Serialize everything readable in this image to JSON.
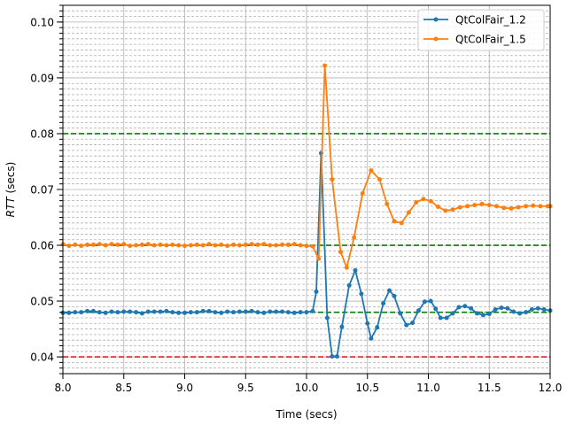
{
  "chart_data": {
    "type": "line",
    "title": "",
    "xlabel": "Time (secs)",
    "ylabel_italic": "RTT",
    "ylabel_rest": " (secs)",
    "xlim": [
      8.0,
      12.0
    ],
    "ylim": [
      0.037,
      0.103
    ],
    "x_ticks": [
      8.0,
      8.5,
      9.0,
      9.5,
      10.0,
      10.5,
      11.0,
      11.5,
      12.0
    ],
    "x_tick_labels": [
      "8.0",
      "8.5",
      "9.0",
      "9.5",
      "10.0",
      "10.5",
      "11.0",
      "11.5",
      "12.0"
    ],
    "y_ticks": [
      0.04,
      0.05,
      0.06,
      0.07,
      0.08,
      0.09,
      0.1
    ],
    "y_tick_labels": [
      "0.04",
      "0.05",
      "0.06",
      "0.07",
      "0.08",
      "0.09",
      "0.10"
    ],
    "grid": true,
    "legend_position": "top-right",
    "reference_lines": [
      {
        "y": 0.08,
        "color": "#008000"
      },
      {
        "y": 0.06,
        "color": "#008000"
      },
      {
        "y": 0.048,
        "color": "#008000"
      },
      {
        "y": 0.04,
        "color": "#d62728"
      }
    ],
    "series": [
      {
        "name": "QtColFair_1.2",
        "color": "#1f77b4",
        "points": [
          [
            8.0,
            0.0479
          ],
          [
            8.05,
            0.0479
          ],
          [
            8.1,
            0.048
          ],
          [
            8.15,
            0.048
          ],
          [
            8.2,
            0.0482
          ],
          [
            8.25,
            0.0482
          ],
          [
            8.3,
            0.048
          ],
          [
            8.35,
            0.0479
          ],
          [
            8.4,
            0.0481
          ],
          [
            8.45,
            0.048
          ],
          [
            8.5,
            0.0481
          ],
          [
            8.55,
            0.0481
          ],
          [
            8.6,
            0.048
          ],
          [
            8.65,
            0.0478
          ],
          [
            8.7,
            0.0481
          ],
          [
            8.75,
            0.0481
          ],
          [
            8.8,
            0.0481
          ],
          [
            8.85,
            0.0482
          ],
          [
            8.9,
            0.048
          ],
          [
            8.95,
            0.0479
          ],
          [
            9.0,
            0.0479
          ],
          [
            9.05,
            0.048
          ],
          [
            9.1,
            0.048
          ],
          [
            9.15,
            0.0482
          ],
          [
            9.2,
            0.0482
          ],
          [
            9.25,
            0.048
          ],
          [
            9.3,
            0.0479
          ],
          [
            9.35,
            0.0481
          ],
          [
            9.4,
            0.048
          ],
          [
            9.45,
            0.0481
          ],
          [
            9.5,
            0.0481
          ],
          [
            9.55,
            0.0482
          ],
          [
            9.6,
            0.048
          ],
          [
            9.65,
            0.0479
          ],
          [
            9.7,
            0.0481
          ],
          [
            9.75,
            0.0481
          ],
          [
            9.8,
            0.0481
          ],
          [
            9.85,
            0.048
          ],
          [
            9.9,
            0.0479
          ],
          [
            9.95,
            0.048
          ],
          [
            10.0,
            0.048
          ],
          [
            10.05,
            0.0482
          ],
          [
            10.08,
            0.0517
          ],
          [
            10.12,
            0.0765
          ],
          [
            10.17,
            0.047
          ],
          [
            10.21,
            0.0401
          ],
          [
            10.25,
            0.0401
          ],
          [
            10.29,
            0.0454
          ],
          [
            10.35,
            0.0528
          ],
          [
            10.4,
            0.0555
          ],
          [
            10.45,
            0.0513
          ],
          [
            10.5,
            0.046
          ],
          [
            10.53,
            0.0433
          ],
          [
            10.58,
            0.0453
          ],
          [
            10.63,
            0.0496
          ],
          [
            10.68,
            0.0519
          ],
          [
            10.72,
            0.0509
          ],
          [
            10.77,
            0.0478
          ],
          [
            10.82,
            0.0457
          ],
          [
            10.87,
            0.0461
          ],
          [
            10.92,
            0.0483
          ],
          [
            10.97,
            0.0499
          ],
          [
            11.02,
            0.05
          ],
          [
            11.06,
            0.0486
          ],
          [
            11.1,
            0.047
          ],
          [
            11.15,
            0.047
          ],
          [
            11.2,
            0.0478
          ],
          [
            11.25,
            0.0489
          ],
          [
            11.3,
            0.0491
          ],
          [
            11.35,
            0.0487
          ],
          [
            11.4,
            0.0478
          ],
          [
            11.45,
            0.0475
          ],
          [
            11.5,
            0.0477
          ],
          [
            11.55,
            0.0485
          ],
          [
            11.6,
            0.0488
          ],
          [
            11.65,
            0.0487
          ],
          [
            11.7,
            0.0481
          ],
          [
            11.75,
            0.0478
          ],
          [
            11.8,
            0.048
          ],
          [
            11.85,
            0.0485
          ],
          [
            11.9,
            0.0487
          ],
          [
            11.95,
            0.0485
          ],
          [
            12.0,
            0.0483
          ]
        ]
      },
      {
        "name": "QtColFair_1.5",
        "color": "#ff7f0e",
        "points": [
          [
            8.0,
            0.0602
          ],
          [
            8.05,
            0.0599
          ],
          [
            8.1,
            0.0601
          ],
          [
            8.15,
            0.0599
          ],
          [
            8.2,
            0.0601
          ],
          [
            8.25,
            0.0601
          ],
          [
            8.3,
            0.0602
          ],
          [
            8.35,
            0.06
          ],
          [
            8.4,
            0.0602
          ],
          [
            8.45,
            0.0601
          ],
          [
            8.5,
            0.0602
          ],
          [
            8.55,
            0.0599
          ],
          [
            8.6,
            0.06
          ],
          [
            8.65,
            0.0601
          ],
          [
            8.7,
            0.0602
          ],
          [
            8.75,
            0.06
          ],
          [
            8.8,
            0.0601
          ],
          [
            8.85,
            0.06
          ],
          [
            8.9,
            0.0601
          ],
          [
            8.95,
            0.06
          ],
          [
            9.0,
            0.0599
          ],
          [
            9.05,
            0.06
          ],
          [
            9.1,
            0.0601
          ],
          [
            9.15,
            0.06
          ],
          [
            9.2,
            0.0602
          ],
          [
            9.25,
            0.06
          ],
          [
            9.3,
            0.0601
          ],
          [
            9.35,
            0.0599
          ],
          [
            9.4,
            0.0601
          ],
          [
            9.45,
            0.06
          ],
          [
            9.5,
            0.0601
          ],
          [
            9.55,
            0.0602
          ],
          [
            9.6,
            0.0601
          ],
          [
            9.65,
            0.0602
          ],
          [
            9.7,
            0.06
          ],
          [
            9.75,
            0.06
          ],
          [
            9.8,
            0.0601
          ],
          [
            9.85,
            0.0601
          ],
          [
            9.9,
            0.0602
          ],
          [
            9.95,
            0.06
          ],
          [
            10.0,
            0.0599
          ],
          [
            10.05,
            0.0598
          ],
          [
            10.1,
            0.0576
          ],
          [
            10.15,
            0.0922
          ],
          [
            10.21,
            0.0718
          ],
          [
            10.28,
            0.0588
          ],
          [
            10.33,
            0.056
          ],
          [
            10.39,
            0.0614
          ],
          [
            10.46,
            0.0693
          ],
          [
            10.53,
            0.0734
          ],
          [
            10.6,
            0.0718
          ],
          [
            10.66,
            0.0674
          ],
          [
            10.72,
            0.0643
          ],
          [
            10.78,
            0.064
          ],
          [
            10.84,
            0.0659
          ],
          [
            10.9,
            0.0677
          ],
          [
            10.96,
            0.0683
          ],
          [
            11.02,
            0.0679
          ],
          [
            11.08,
            0.0669
          ],
          [
            11.14,
            0.0662
          ],
          [
            11.2,
            0.0664
          ],
          [
            11.26,
            0.0668
          ],
          [
            11.32,
            0.067
          ],
          [
            11.38,
            0.0672
          ],
          [
            11.44,
            0.0674
          ],
          [
            11.5,
            0.0672
          ],
          [
            11.56,
            0.067
          ],
          [
            11.62,
            0.0667
          ],
          [
            11.68,
            0.0666
          ],
          [
            11.74,
            0.0668
          ],
          [
            11.8,
            0.067
          ],
          [
            11.86,
            0.0671
          ],
          [
            11.92,
            0.067
          ],
          [
            11.98,
            0.067
          ],
          [
            12.0,
            0.067
          ]
        ]
      }
    ]
  }
}
